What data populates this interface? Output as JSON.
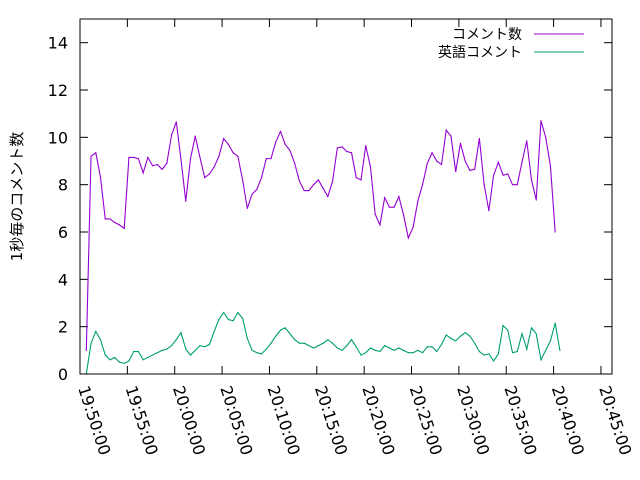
{
  "chart_data": {
    "type": "line",
    "title": "",
    "xlabel": "",
    "ylabel": "1秒毎のコメント数",
    "ylim": [
      0,
      15
    ],
    "y_ticks": [
      0,
      2,
      4,
      6,
      8,
      10,
      12,
      14
    ],
    "x_ticks": [
      "19:50:00",
      "19:55:00",
      "20:00:00",
      "20:05:00",
      "20:10:00",
      "20:15:00",
      "20:20:00",
      "20:25:00",
      "20:30:00",
      "20:35:00",
      "20:40:00",
      "20:45:00"
    ],
    "xlim": [
      "19:50:00",
      "20:46:10"
    ],
    "grid": false,
    "legend_position": "top-right",
    "series": [
      {
        "name": "コメント数",
        "color": "#9400D3",
        "points": [
          [
            "19:50:40",
            1.0
          ],
          [
            "19:51:10",
            9.2
          ],
          [
            "19:51:40",
            9.35
          ],
          [
            "19:52:10",
            8.3
          ],
          [
            "19:52:40",
            6.55
          ],
          [
            "19:53:10",
            6.55
          ],
          [
            "19:53:40",
            6.4
          ],
          [
            "19:54:10",
            6.3
          ],
          [
            "19:54:40",
            6.15
          ],
          [
            "19:55:10",
            9.15
          ],
          [
            "19:55:40",
            9.15
          ],
          [
            "19:56:10",
            9.1
          ],
          [
            "19:56:40",
            8.5
          ],
          [
            "19:57:10",
            9.15
          ],
          [
            "19:57:40",
            8.8
          ],
          [
            "19:58:10",
            8.85
          ],
          [
            "19:58:40",
            8.65
          ],
          [
            "19:59:10",
            8.9
          ],
          [
            "19:59:40",
            10.1
          ],
          [
            "20:00:10",
            10.65
          ],
          [
            "20:00:40",
            9.05
          ],
          [
            "20:01:10",
            7.3
          ],
          [
            "20:01:40",
            9.1
          ],
          [
            "20:02:10",
            10.05
          ],
          [
            "20:02:40",
            9.15
          ],
          [
            "20:03:10",
            8.3
          ],
          [
            "20:03:40",
            8.45
          ],
          [
            "20:04:10",
            8.75
          ],
          [
            "20:04:40",
            9.2
          ],
          [
            "20:05:10",
            9.95
          ],
          [
            "20:05:40",
            9.7
          ],
          [
            "20:06:10",
            9.35
          ],
          [
            "20:06:40",
            9.2
          ],
          [
            "20:07:10",
            8.2
          ],
          [
            "20:07:40",
            7.0
          ],
          [
            "20:08:10",
            7.6
          ],
          [
            "20:08:40",
            7.8
          ],
          [
            "20:09:10",
            8.3
          ],
          [
            "20:09:40",
            9.1
          ],
          [
            "20:10:10",
            9.1
          ],
          [
            "20:10:40",
            9.8
          ],
          [
            "20:11:10",
            10.25
          ],
          [
            "20:11:40",
            9.7
          ],
          [
            "20:12:10",
            9.45
          ],
          [
            "20:12:40",
            8.9
          ],
          [
            "20:13:10",
            8.15
          ],
          [
            "20:13:40",
            7.75
          ],
          [
            "20:14:10",
            7.75
          ],
          [
            "20:14:40",
            8.0
          ],
          [
            "20:15:10",
            8.2
          ],
          [
            "20:15:40",
            7.85
          ],
          [
            "20:16:10",
            7.5
          ],
          [
            "20:16:40",
            8.15
          ],
          [
            "20:17:10",
            9.55
          ],
          [
            "20:17:40",
            9.6
          ],
          [
            "20:18:10",
            9.4
          ],
          [
            "20:18:40",
            9.35
          ],
          [
            "20:19:10",
            8.3
          ],
          [
            "20:19:40",
            8.2
          ],
          [
            "20:20:10",
            9.65
          ],
          [
            "20:20:40",
            8.75
          ],
          [
            "20:21:10",
            6.75
          ],
          [
            "20:21:40",
            6.3
          ],
          [
            "20:22:10",
            7.45
          ],
          [
            "20:22:40",
            7.05
          ],
          [
            "20:23:10",
            7.05
          ],
          [
            "20:23:40",
            7.5
          ],
          [
            "20:24:10",
            6.7
          ],
          [
            "20:24:40",
            5.75
          ],
          [
            "20:25:10",
            6.2
          ],
          [
            "20:25:40",
            7.3
          ],
          [
            "20:26:10",
            8.0
          ],
          [
            "20:26:40",
            8.9
          ],
          [
            "20:27:10",
            9.35
          ],
          [
            "20:27:40",
            9.0
          ],
          [
            "20:28:10",
            8.85
          ],
          [
            "20:28:40",
            10.3
          ],
          [
            "20:29:10",
            10.05
          ],
          [
            "20:29:40",
            8.55
          ],
          [
            "20:30:10",
            9.75
          ],
          [
            "20:30:40",
            9.0
          ],
          [
            "20:31:10",
            8.6
          ],
          [
            "20:31:40",
            8.65
          ],
          [
            "20:32:10",
            9.95
          ],
          [
            "20:32:40",
            8.0
          ],
          [
            "20:33:10",
            6.9
          ],
          [
            "20:33:40",
            8.4
          ],
          [
            "20:34:10",
            8.95
          ],
          [
            "20:34:40",
            8.4
          ],
          [
            "20:35:10",
            8.45
          ],
          [
            "20:35:40",
            8.0
          ],
          [
            "20:36:10",
            8.0
          ],
          [
            "20:36:40",
            8.95
          ],
          [
            "20:37:10",
            9.85
          ],
          [
            "20:37:40",
            8.2
          ],
          [
            "20:38:10",
            7.35
          ],
          [
            "20:38:40",
            10.7
          ],
          [
            "20:39:10",
            10.0
          ],
          [
            "20:39:40",
            8.8
          ],
          [
            "20:40:10",
            6.0
          ]
        ]
      },
      {
        "name": "英語コメント",
        "color": "#009E73",
        "points": [
          [
            "19:50:40",
            0.0
          ],
          [
            "19:51:10",
            1.3
          ],
          [
            "19:51:40",
            1.8
          ],
          [
            "19:52:10",
            1.45
          ],
          [
            "19:52:40",
            0.8
          ],
          [
            "19:53:10",
            0.6
          ],
          [
            "19:53:40",
            0.7
          ],
          [
            "19:54:10",
            0.5
          ],
          [
            "19:54:40",
            0.45
          ],
          [
            "19:55:10",
            0.55
          ],
          [
            "19:55:40",
            0.95
          ],
          [
            "19:56:10",
            0.95
          ],
          [
            "19:56:40",
            0.6
          ],
          [
            "19:57:10",
            0.7
          ],
          [
            "19:57:40",
            0.8
          ],
          [
            "19:58:10",
            0.9
          ],
          [
            "19:58:40",
            1.0
          ],
          [
            "19:59:10",
            1.05
          ],
          [
            "19:59:40",
            1.2
          ],
          [
            "20:00:10",
            1.45
          ],
          [
            "20:00:40",
            1.75
          ],
          [
            "20:01:10",
            1.05
          ],
          [
            "20:01:40",
            0.8
          ],
          [
            "20:02:10",
            1.0
          ],
          [
            "20:02:40",
            1.2
          ],
          [
            "20:03:10",
            1.15
          ],
          [
            "20:03:40",
            1.25
          ],
          [
            "20:04:10",
            1.8
          ],
          [
            "20:04:40",
            2.3
          ],
          [
            "20:05:10",
            2.6
          ],
          [
            "20:05:40",
            2.3
          ],
          [
            "20:06:10",
            2.25
          ],
          [
            "20:06:40",
            2.6
          ],
          [
            "20:07:10",
            2.35
          ],
          [
            "20:07:40",
            1.5
          ],
          [
            "20:08:10",
            1.0
          ],
          [
            "20:08:40",
            0.9
          ],
          [
            "20:09:10",
            0.85
          ],
          [
            "20:09:40",
            1.05
          ],
          [
            "20:10:10",
            1.3
          ],
          [
            "20:10:40",
            1.6
          ],
          [
            "20:11:10",
            1.85
          ],
          [
            "20:11:40",
            1.95
          ],
          [
            "20:12:10",
            1.7
          ],
          [
            "20:12:40",
            1.45
          ],
          [
            "20:13:10",
            1.3
          ],
          [
            "20:13:40",
            1.3
          ],
          [
            "20:14:10",
            1.2
          ],
          [
            "20:14:40",
            1.1
          ],
          [
            "20:15:10",
            1.2
          ],
          [
            "20:15:40",
            1.3
          ],
          [
            "20:16:10",
            1.45
          ],
          [
            "20:16:40",
            1.3
          ],
          [
            "20:17:10",
            1.1
          ],
          [
            "20:17:40",
            1.0
          ],
          [
            "20:18:10",
            1.2
          ],
          [
            "20:18:40",
            1.45
          ],
          [
            "20:19:10",
            1.15
          ],
          [
            "20:19:40",
            0.8
          ],
          [
            "20:20:10",
            0.9
          ],
          [
            "20:20:40",
            1.1
          ],
          [
            "20:21:10",
            1.0
          ],
          [
            "20:21:40",
            0.95
          ],
          [
            "20:22:10",
            1.2
          ],
          [
            "20:22:40",
            1.1
          ],
          [
            "20:23:10",
            1.0
          ],
          [
            "20:23:40",
            1.1
          ],
          [
            "20:24:10",
            1.0
          ],
          [
            "20:24:40",
            0.9
          ],
          [
            "20:25:10",
            0.9
          ],
          [
            "20:25:40",
            1.0
          ],
          [
            "20:26:10",
            0.9
          ],
          [
            "20:26:40",
            1.15
          ],
          [
            "20:27:10",
            1.15
          ],
          [
            "20:27:40",
            0.95
          ],
          [
            "20:28:10",
            1.25
          ],
          [
            "20:28:40",
            1.65
          ],
          [
            "20:29:10",
            1.5
          ],
          [
            "20:29:40",
            1.4
          ],
          [
            "20:30:10",
            1.6
          ],
          [
            "20:30:40",
            1.75
          ],
          [
            "20:31:10",
            1.6
          ],
          [
            "20:31:40",
            1.3
          ],
          [
            "20:32:10",
            0.95
          ],
          [
            "20:32:40",
            0.8
          ],
          [
            "20:33:10",
            0.85
          ],
          [
            "20:33:40",
            0.55
          ],
          [
            "20:34:10",
            0.85
          ],
          [
            "20:34:40",
            2.05
          ],
          [
            "20:35:10",
            1.85
          ],
          [
            "20:35:40",
            0.9
          ],
          [
            "20:36:10",
            0.95
          ],
          [
            "20:36:40",
            1.7
          ],
          [
            "20:37:10",
            1.05
          ],
          [
            "20:37:40",
            1.95
          ],
          [
            "20:38:10",
            1.7
          ],
          [
            "20:38:40",
            0.6
          ],
          [
            "20:39:10",
            1.0
          ],
          [
            "20:39:40",
            1.4
          ],
          [
            "20:40:10",
            2.15
          ],
          [
            "20:40:40",
            1.0
          ]
        ]
      }
    ]
  }
}
